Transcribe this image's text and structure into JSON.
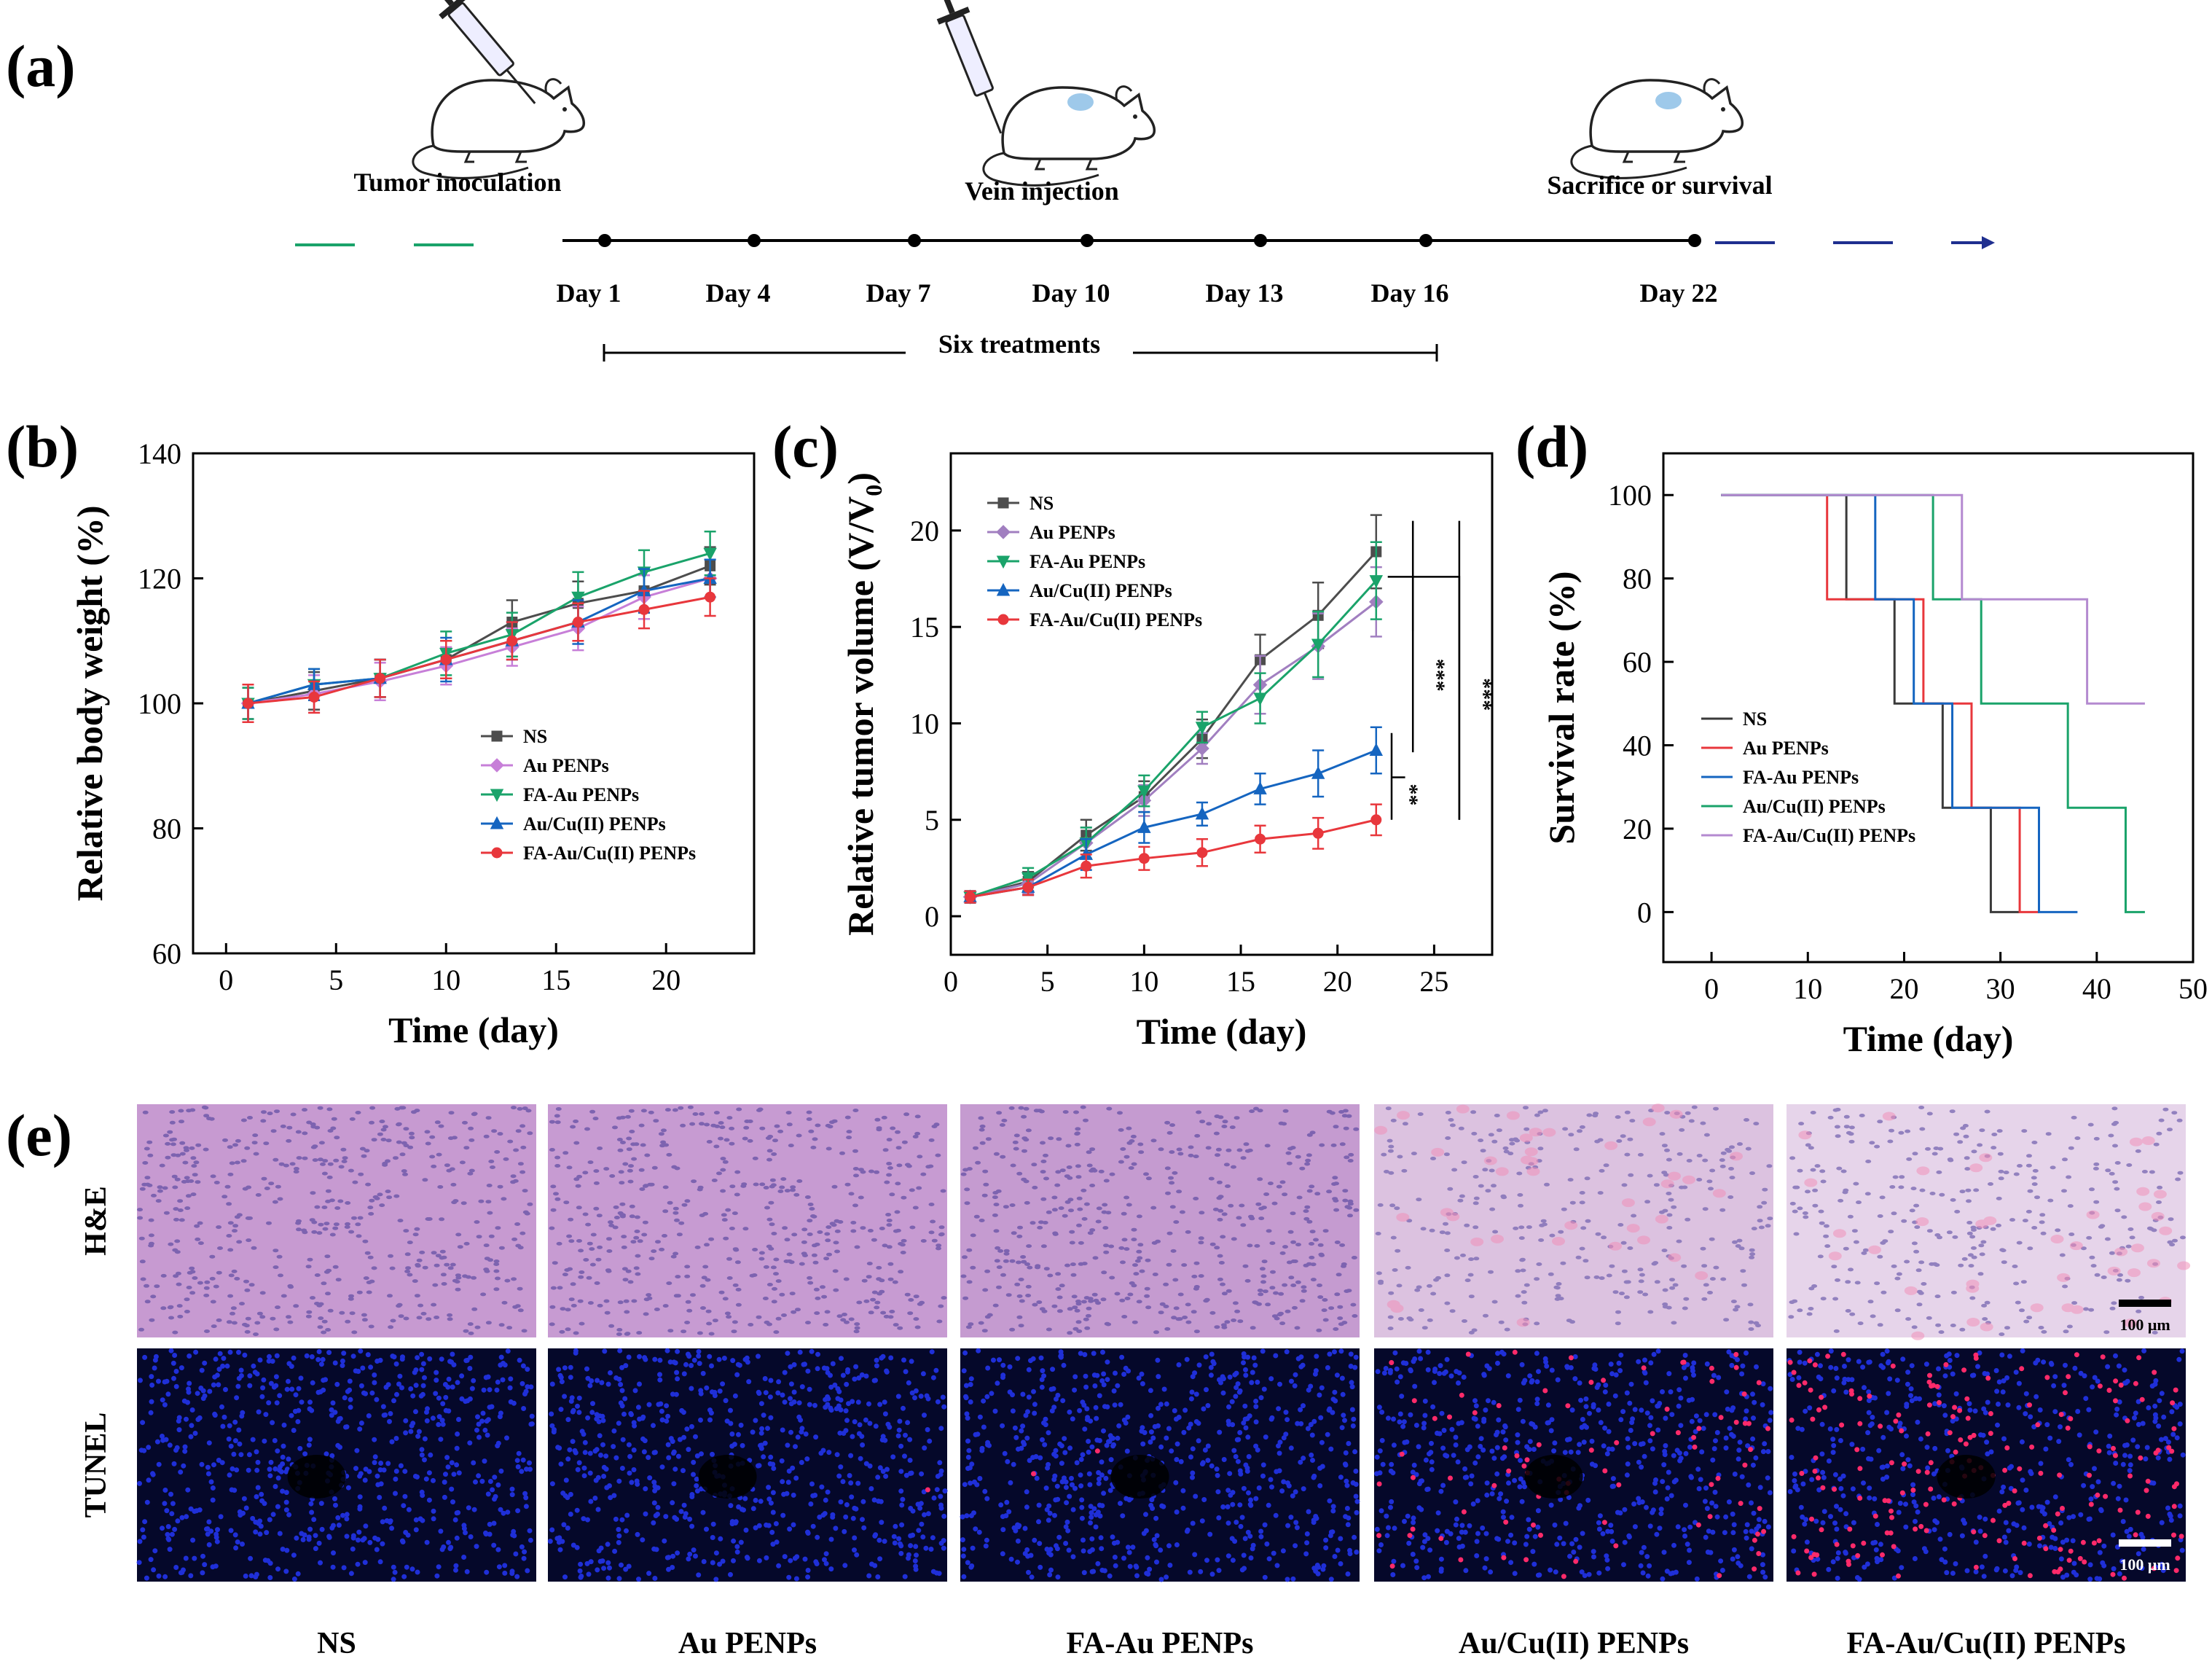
{
  "panel_labels": [
    "(a)",
    "(b)",
    "(c)",
    "(d)",
    "(e)"
  ],
  "timeline": {
    "stages": [
      {
        "label": "Tumor inoculation"
      },
      {
        "label": "Vein injection"
      },
      {
        "label": "Sacrifice or survival"
      }
    ],
    "days": [
      "Day 1",
      "Day 4",
      "Day 7",
      "Day 10",
      "Day 13",
      "Day 16",
      "Day 22"
    ],
    "treatments_label": "Six treatments",
    "colors": {
      "pre": "#1aa36a",
      "post": "#1f2f8f",
      "line": "#000000"
    }
  },
  "chart_data": [
    {
      "type": "line",
      "panel": "(b)",
      "xlabel": "Time (day)",
      "ylabel": "Relative body weight (%)",
      "xlim": [
        -1.5,
        24
      ],
      "ylim": [
        60,
        140
      ],
      "xticks": [
        0,
        5,
        10,
        15,
        20
      ],
      "yticks": [
        60,
        80,
        100,
        120,
        140
      ],
      "x": [
        1,
        4,
        7,
        10,
        13,
        16,
        19,
        22
      ],
      "legend_position": "center-right",
      "series": [
        {
          "name": "NS",
          "color": "#4d4d4d",
          "marker": "square",
          "values": [
            100,
            102,
            104,
            107,
            113,
            116,
            118,
            122
          ],
          "err": [
            2.5,
            3,
            3,
            3,
            3.5,
            3.5,
            3.5,
            3
          ]
        },
        {
          "name": "Au PENPs",
          "color": "#c77fd8",
          "marker": "diamond",
          "values": [
            100,
            101.5,
            103.5,
            106,
            109,
            112,
            117,
            120
          ],
          "err": [
            2.5,
            3,
            3,
            3,
            3,
            3.5,
            3.5,
            3
          ]
        },
        {
          "name": "FA-Au PENPs",
          "color": "#1aa36a",
          "marker": "triangle-down",
          "values": [
            100,
            103,
            104,
            108,
            111,
            117,
            121,
            124
          ],
          "err": [
            2.5,
            2.5,
            3,
            3.5,
            3.5,
            4,
            3.5,
            3.5
          ]
        },
        {
          "name": "Au/Cu(II) PENPs",
          "color": "#1565c0",
          "marker": "triangle-up",
          "values": [
            100,
            103,
            104,
            107,
            110,
            113,
            118,
            120
          ],
          "err": [
            3,
            2.5,
            3,
            3.5,
            3,
            3.5,
            3.5,
            3
          ]
        },
        {
          "name": "FA-Au/Cu(II) PENPs",
          "color": "#e8373c",
          "marker": "circle",
          "values": [
            100,
            101,
            104,
            107,
            110,
            113,
            115,
            117
          ],
          "err": [
            3,
            2.5,
            3,
            3,
            3,
            3,
            3,
            3
          ]
        }
      ]
    },
    {
      "type": "line",
      "panel": "(c)",
      "xlabel": "Time (day)",
      "ylabel": "Relative tumor volume (V/V",
      "ylabel_sub": "0",
      "ylabel_tail": ")",
      "xlim": [
        0,
        28
      ],
      "ylim": [
        -2,
        24
      ],
      "xticks": [
        0,
        5,
        10,
        15,
        20,
        25
      ],
      "yticks": [
        0,
        5,
        10,
        15,
        20
      ],
      "x": [
        1,
        4,
        7,
        10,
        13,
        16,
        19,
        22
      ],
      "legend_position": "top-left",
      "series": [
        {
          "name": "NS",
          "color": "#4d4d4d",
          "marker": "square",
          "values": [
            1,
            1.8,
            4.2,
            6.2,
            9.2,
            13.3,
            15.6,
            18.9
          ],
          "err": [
            0.3,
            0.5,
            0.8,
            0.8,
            1,
            1.3,
            1.7,
            1.9
          ]
        },
        {
          "name": "Au PENPs",
          "color": "#a17fc0",
          "marker": "diamond",
          "values": [
            1,
            1.7,
            3.8,
            6.0,
            8.7,
            12.0,
            14.0,
            16.3
          ],
          "err": [
            0.3,
            0.5,
            0.8,
            0.8,
            0.8,
            1.5,
            1.7,
            1.8
          ]
        },
        {
          "name": "FA-Au PENPs",
          "color": "#1aa36a",
          "marker": "triangle-down",
          "values": [
            1,
            2.0,
            3.8,
            6.5,
            9.8,
            11.3,
            14.1,
            17.4
          ],
          "err": [
            0.3,
            0.5,
            0.8,
            0.8,
            0.8,
            1.3,
            1.7,
            2.0
          ]
        },
        {
          "name": "Au/Cu(II) PENPs",
          "color": "#1565c0",
          "marker": "triangle-up",
          "values": [
            1,
            1.5,
            3.2,
            4.6,
            5.3,
            6.6,
            7.4,
            8.6
          ],
          "err": [
            0.3,
            0.4,
            0.8,
            0.8,
            0.6,
            0.8,
            1.2,
            1.2
          ]
        },
        {
          "name": "FA-Au/Cu(II) PENPs",
          "color": "#e8373c",
          "marker": "circle",
          "values": [
            1,
            1.5,
            2.6,
            3.0,
            3.3,
            4.0,
            4.3,
            5.0
          ],
          "err": [
            0.3,
            0.4,
            0.6,
            0.6,
            0.7,
            0.7,
            0.8,
            0.8
          ]
        }
      ],
      "significance": [
        "***",
        "***",
        "**"
      ]
    },
    {
      "type": "line",
      "panel": "(d)",
      "xlabel": "Time (day)",
      "ylabel": "Survival rate (%)",
      "xlim": [
        -5,
        50
      ],
      "ylim": [
        -12,
        110
      ],
      "xticks": [
        0,
        10,
        20,
        30,
        40,
        50
      ],
      "yticks": [
        0,
        20,
        40,
        60,
        80,
        100
      ],
      "legend_position": "bottom-left",
      "series": [
        {
          "name": "NS",
          "color": "#3a3a3a",
          "x": [
            1,
            14,
            14,
            19,
            19,
            24,
            24,
            29,
            29,
            32
          ],
          "values": [
            100,
            100,
            75,
            75,
            50,
            50,
            25,
            25,
            0,
            0
          ]
        },
        {
          "name": "Au PENPs",
          "color": "#e8373c",
          "x": [
            1,
            12,
            12,
            22,
            22,
            27,
            27,
            32,
            32,
            34
          ],
          "values": [
            100,
            100,
            75,
            75,
            50,
            50,
            25,
            25,
            0,
            0
          ]
        },
        {
          "name": "FA-Au PENPs",
          "color": "#1565c0",
          "x": [
            1,
            17,
            17,
            21,
            21,
            25,
            25,
            34,
            34,
            38
          ],
          "values": [
            100,
            100,
            75,
            75,
            50,
            50,
            25,
            25,
            0,
            0
          ]
        },
        {
          "name": "Au/Cu(II) PENPs",
          "color": "#1aa36a",
          "x": [
            1,
            23,
            23,
            28,
            28,
            37,
            37,
            43,
            43,
            45
          ],
          "values": [
            100,
            100,
            75,
            75,
            50,
            50,
            25,
            25,
            0,
            0
          ]
        },
        {
          "name": "FA-Au/Cu(II) PENPs",
          "color": "#b48ad0",
          "x": [
            1,
            26,
            26,
            39,
            39,
            45
          ],
          "values": [
            100,
            100,
            75,
            75,
            50,
            50
          ]
        }
      ]
    }
  ],
  "histology": {
    "rows": [
      "H&E",
      "TUNEL"
    ],
    "groups": [
      "NS",
      "Au PENPs",
      "FA-Au PENPs",
      "Au/Cu(II) PENPs",
      "FA-Au/Cu(II) PENPs"
    ],
    "scale_bar": "100 μm",
    "he_background": [
      "#c79ad1",
      "#c79bd2",
      "#c59bd0",
      "#dcc2e0",
      "#e6d4ea"
    ],
    "tunel_red_fraction": [
      0.0,
      0.002,
      0.002,
      0.12,
      0.3
    ]
  }
}
